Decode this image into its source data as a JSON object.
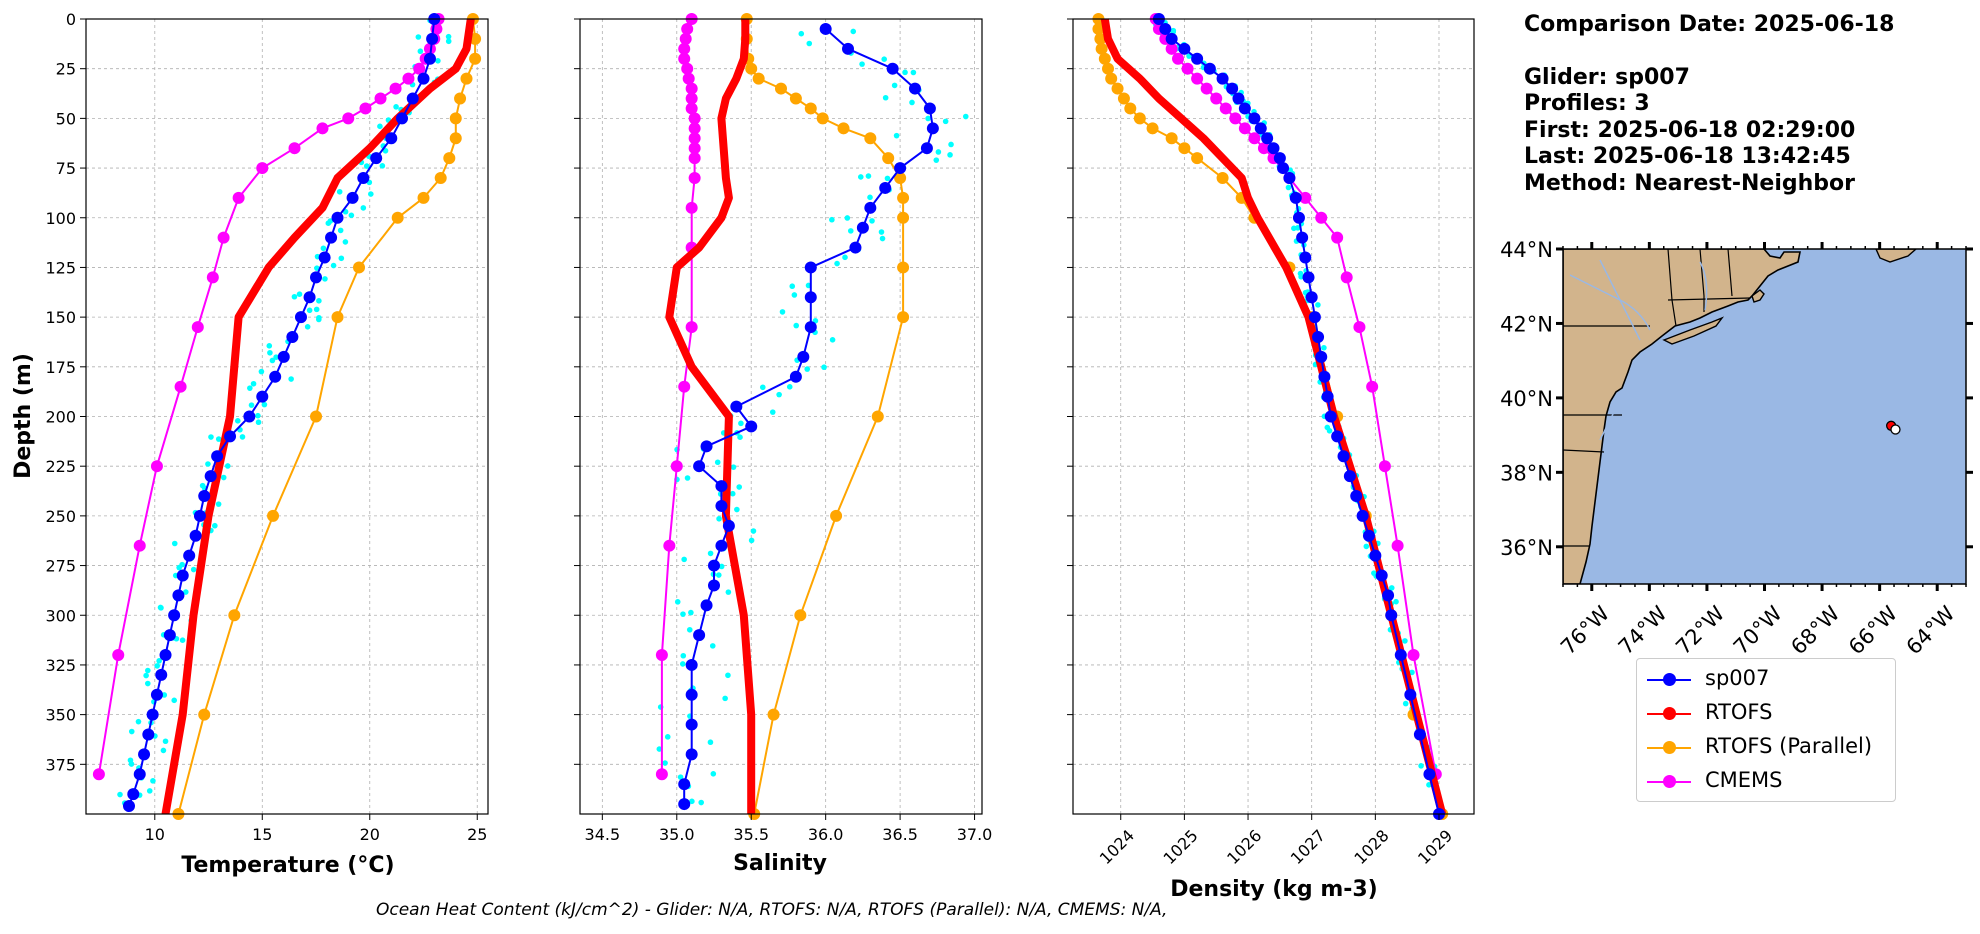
{
  "info": {
    "comparison_date": "Comparison Date: 2025-06-18",
    "glider": "Glider: sp007",
    "profiles": "Profiles: 3",
    "first": "First: 2025-06-18 02:29:00",
    "last": "Last: 2025-06-18 13:42:45",
    "method": "Method: Nearest-Neighbor"
  },
  "footer": "Ocean Heat Content (kJ/cm^2) - Glider: N/A,  RTOFS: N/A,  RTOFS (Parallel): N/A,  CMEMS: N/A,",
  "legend": [
    {
      "name": "sp007",
      "color": "#0000ff"
    },
    {
      "name": "RTOFS",
      "color": "#ff0000"
    },
    {
      "name": "RTOFS (Parallel)",
      "color": "#ffa500"
    },
    {
      "name": "CMEMS",
      "color": "#ff00ff"
    }
  ],
  "colors": {
    "glider_raw": "#00ffff",
    "land": "#d2b48c",
    "ocean": "#9ab8e4",
    "grid": "#b0b0b0"
  },
  "chart_data": [
    {
      "type": "line",
      "xlabel": "Temperature (°C)",
      "ylabel": "Depth (m)",
      "xlim": [
        6.8,
        25.5
      ],
      "ylim": [
        400,
        0
      ],
      "xticks": [
        10,
        15,
        20,
        25
      ],
      "yticks": [
        0,
        25,
        50,
        75,
        100,
        125,
        150,
        175,
        200,
        225,
        250,
        275,
        300,
        325,
        350,
        375
      ],
      "grid": true,
      "series": [
        {
          "name": "sp007",
          "depth": [
            0,
            10,
            20,
            30,
            40,
            50,
            60,
            70,
            80,
            90,
            100,
            110,
            120,
            130,
            140,
            150,
            160,
            170,
            180,
            190,
            200,
            210,
            220,
            230,
            240,
            250,
            260,
            270,
            280,
            290,
            300,
            310,
            320,
            330,
            340,
            350,
            360,
            370,
            380,
            390,
            396
          ],
          "values": [
            23.0,
            22.9,
            22.8,
            22.5,
            22.0,
            21.5,
            21.0,
            20.3,
            19.7,
            19.2,
            18.5,
            18.2,
            17.9,
            17.5,
            17.2,
            16.8,
            16.4,
            16.0,
            15.6,
            15.0,
            14.4,
            13.5,
            12.9,
            12.6,
            12.3,
            12.1,
            11.9,
            11.6,
            11.3,
            11.1,
            10.9,
            10.7,
            10.5,
            10.3,
            10.1,
            9.9,
            9.7,
            9.5,
            9.3,
            9.0,
            8.8
          ]
        },
        {
          "name": "RTOFS",
          "depth": [
            0,
            15,
            25,
            35,
            50,
            65,
            80,
            95,
            110,
            125,
            150,
            200,
            250,
            300,
            350,
            400
          ],
          "values": [
            24.7,
            24.5,
            24.0,
            22.8,
            21.3,
            20.0,
            18.5,
            17.8,
            16.5,
            15.3,
            13.9,
            13.5,
            12.5,
            11.8,
            11.3,
            10.5
          ]
        },
        {
          "name": "RTOFS (Parallel)",
          "depth": [
            0,
            10,
            20,
            30,
            40,
            50,
            60,
            70,
            80,
            90,
            100,
            125,
            150,
            200,
            250,
            300,
            350,
            400
          ],
          "values": [
            24.8,
            24.9,
            24.9,
            24.5,
            24.2,
            24.0,
            24.0,
            23.7,
            23.3,
            22.5,
            21.3,
            19.5,
            18.5,
            17.5,
            15.5,
            13.7,
            12.3,
            11.1
          ]
        },
        {
          "name": "CMEMS",
          "depth": [
            0,
            5,
            10,
            15,
            20,
            25,
            30,
            35,
            40,
            45,
            50,
            55,
            65,
            75,
            90,
            110,
            130,
            155,
            185,
            225,
            265,
            320,
            380
          ],
          "values": [
            23.2,
            23.1,
            23.0,
            22.8,
            22.6,
            22.3,
            21.8,
            21.2,
            20.5,
            19.8,
            19.0,
            17.8,
            16.5,
            15.0,
            13.9,
            13.2,
            12.7,
            12.0,
            11.2,
            10.1,
            9.3,
            8.3,
            7.4
          ]
        }
      ]
    },
    {
      "type": "line",
      "xlabel": "Salinity",
      "xlim": [
        34.35,
        37.05
      ],
      "ylim": [
        400,
        0
      ],
      "xticks": [
        34.5,
        35.0,
        35.5,
        36.0,
        36.5,
        37.0
      ],
      "grid": true,
      "series": [
        {
          "name": "sp007",
          "depth": [
            5,
            15,
            25,
            35,
            45,
            55,
            65,
            75,
            85,
            95,
            105,
            115,
            125,
            140,
            155,
            170,
            180,
            195,
            205,
            215,
            225,
            235,
            245,
            255,
            265,
            275,
            285,
            295,
            310,
            325,
            340,
            355,
            370,
            385,
            395
          ],
          "values": [
            36.0,
            36.15,
            36.45,
            36.6,
            36.7,
            36.72,
            36.68,
            36.5,
            36.4,
            36.3,
            36.25,
            36.2,
            35.9,
            35.9,
            35.9,
            35.85,
            35.8,
            35.4,
            35.5,
            35.2,
            35.15,
            35.3,
            35.3,
            35.35,
            35.3,
            35.25,
            35.25,
            35.2,
            35.15,
            35.1,
            35.1,
            35.1,
            35.1,
            35.05,
            35.05
          ]
        },
        {
          "name": "RTOFS",
          "depth": [
            0,
            10,
            20,
            30,
            40,
            50,
            60,
            70,
            80,
            90,
            100,
            115,
            125,
            150,
            175,
            200,
            250,
            300,
            350,
            400
          ],
          "values": [
            35.46,
            35.46,
            35.45,
            35.4,
            35.33,
            35.3,
            35.31,
            35.32,
            35.33,
            35.35,
            35.3,
            35.15,
            35.0,
            34.95,
            35.1,
            35.35,
            35.33,
            35.45,
            35.5,
            35.5
          ]
        },
        {
          "name": "RTOFS (Parallel)",
          "depth": [
            0,
            10,
            20,
            25,
            30,
            35,
            40,
            45,
            50,
            55,
            60,
            70,
            80,
            90,
            100,
            125,
            150,
            200,
            250,
            300,
            350,
            400
          ],
          "values": [
            35.47,
            35.47,
            35.48,
            35.5,
            35.55,
            35.7,
            35.8,
            35.9,
            35.98,
            36.12,
            36.3,
            36.42,
            36.5,
            36.52,
            36.52,
            36.52,
            36.52,
            36.35,
            36.07,
            35.83,
            35.65,
            35.52
          ]
        },
        {
          "name": "CMEMS",
          "depth": [
            0,
            5,
            10,
            15,
            20,
            25,
            30,
            35,
            40,
            45,
            50,
            55,
            60,
            65,
            70,
            80,
            95,
            115,
            155,
            185,
            225,
            265,
            320,
            380
          ],
          "values": [
            35.1,
            35.07,
            35.06,
            35.05,
            35.05,
            35.07,
            35.08,
            35.1,
            35.1,
            35.1,
            35.12,
            35.12,
            35.12,
            35.12,
            35.12,
            35.12,
            35.1,
            35.1,
            35.1,
            35.05,
            35.0,
            34.95,
            34.9,
            34.9
          ]
        }
      ]
    },
    {
      "type": "line",
      "xlabel": "Density (kg m-3)",
      "xlim": [
        1023.25,
        1029.55
      ],
      "ylim": [
        400,
        0
      ],
      "xticks": [
        1024,
        1025,
        1026,
        1027,
        1028,
        1029
      ],
      "grid": true,
      "series": [
        {
          "name": "sp007",
          "depth": [
            0,
            5,
            10,
            15,
            20,
            25,
            30,
            35,
            40,
            45,
            50,
            55,
            60,
            65,
            70,
            75,
            80,
            90,
            100,
            110,
            120,
            130,
            140,
            150,
            160,
            170,
            180,
            190,
            200,
            210,
            220,
            230,
            240,
            250,
            260,
            270,
            280,
            290,
            300,
            320,
            340,
            360,
            380,
            400
          ],
          "values": [
            1024.6,
            1024.7,
            1024.8,
            1025.0,
            1025.2,
            1025.4,
            1025.6,
            1025.75,
            1025.85,
            1025.95,
            1026.1,
            1026.2,
            1026.3,
            1026.4,
            1026.5,
            1026.55,
            1026.65,
            1026.75,
            1026.8,
            1026.85,
            1026.9,
            1026.95,
            1027.0,
            1027.05,
            1027.1,
            1027.15,
            1027.2,
            1027.25,
            1027.3,
            1027.4,
            1027.5,
            1027.6,
            1027.7,
            1027.8,
            1027.9,
            1028.0,
            1028.1,
            1028.2,
            1028.25,
            1028.4,
            1028.55,
            1028.7,
            1028.85,
            1029.0
          ]
        },
        {
          "name": "RTOFS",
          "depth": [
            0,
            10,
            20,
            30,
            40,
            50,
            60,
            70,
            80,
            90,
            100,
            125,
            150,
            200,
            250,
            300,
            350,
            400
          ],
          "values": [
            1023.75,
            1023.8,
            1023.95,
            1024.3,
            1024.6,
            1024.95,
            1025.3,
            1025.6,
            1025.9,
            1026.0,
            1026.15,
            1026.6,
            1026.95,
            1027.35,
            1027.85,
            1028.25,
            1028.65,
            1029.05
          ]
        },
        {
          "name": "RTOFS (Parallel)",
          "depth": [
            0,
            5,
            10,
            15,
            20,
            25,
            30,
            35,
            40,
            45,
            50,
            55,
            60,
            65,
            70,
            80,
            90,
            100,
            125,
            150,
            200,
            250,
            300,
            350,
            400
          ],
          "values": [
            1023.65,
            1023.65,
            1023.68,
            1023.7,
            1023.75,
            1023.8,
            1023.85,
            1023.95,
            1024.05,
            1024.15,
            1024.3,
            1024.5,
            1024.8,
            1025.0,
            1025.2,
            1025.6,
            1025.9,
            1026.1,
            1026.65,
            1027.0,
            1027.4,
            1027.85,
            1028.25,
            1028.6,
            1029.05
          ]
        },
        {
          "name": "CMEMS",
          "depth": [
            0,
            5,
            10,
            15,
            20,
            25,
            30,
            35,
            40,
            45,
            50,
            55,
            60,
            65,
            70,
            80,
            90,
            100,
            110,
            130,
            155,
            185,
            225,
            265,
            320,
            380
          ],
          "values": [
            1024.55,
            1024.6,
            1024.7,
            1024.8,
            1024.9,
            1025.05,
            1025.2,
            1025.35,
            1025.5,
            1025.65,
            1025.8,
            1025.95,
            1026.1,
            1026.25,
            1026.4,
            1026.65,
            1026.9,
            1027.15,
            1027.4,
            1027.55,
            1027.75,
            1027.95,
            1028.15,
            1028.35,
            1028.6,
            1028.95
          ]
        }
      ]
    },
    {
      "type": "map",
      "lon_ticks": [
        "76°W",
        "74°W",
        "72°W",
        "70°W",
        "68°W",
        "66°W",
        "64°W"
      ],
      "lat_ticks": [
        "44°N",
        "42°N",
        "40°N",
        "38°N",
        "36°N"
      ],
      "lon_range": [
        -77,
        -63
      ],
      "lat_range": [
        35,
        44
      ],
      "markers": [
        {
          "series": "RTOFS",
          "lon": -65.6,
          "lat": 39.25
        },
        {
          "series": "sp007",
          "lon": -65.45,
          "lat": 39.15
        }
      ]
    }
  ]
}
